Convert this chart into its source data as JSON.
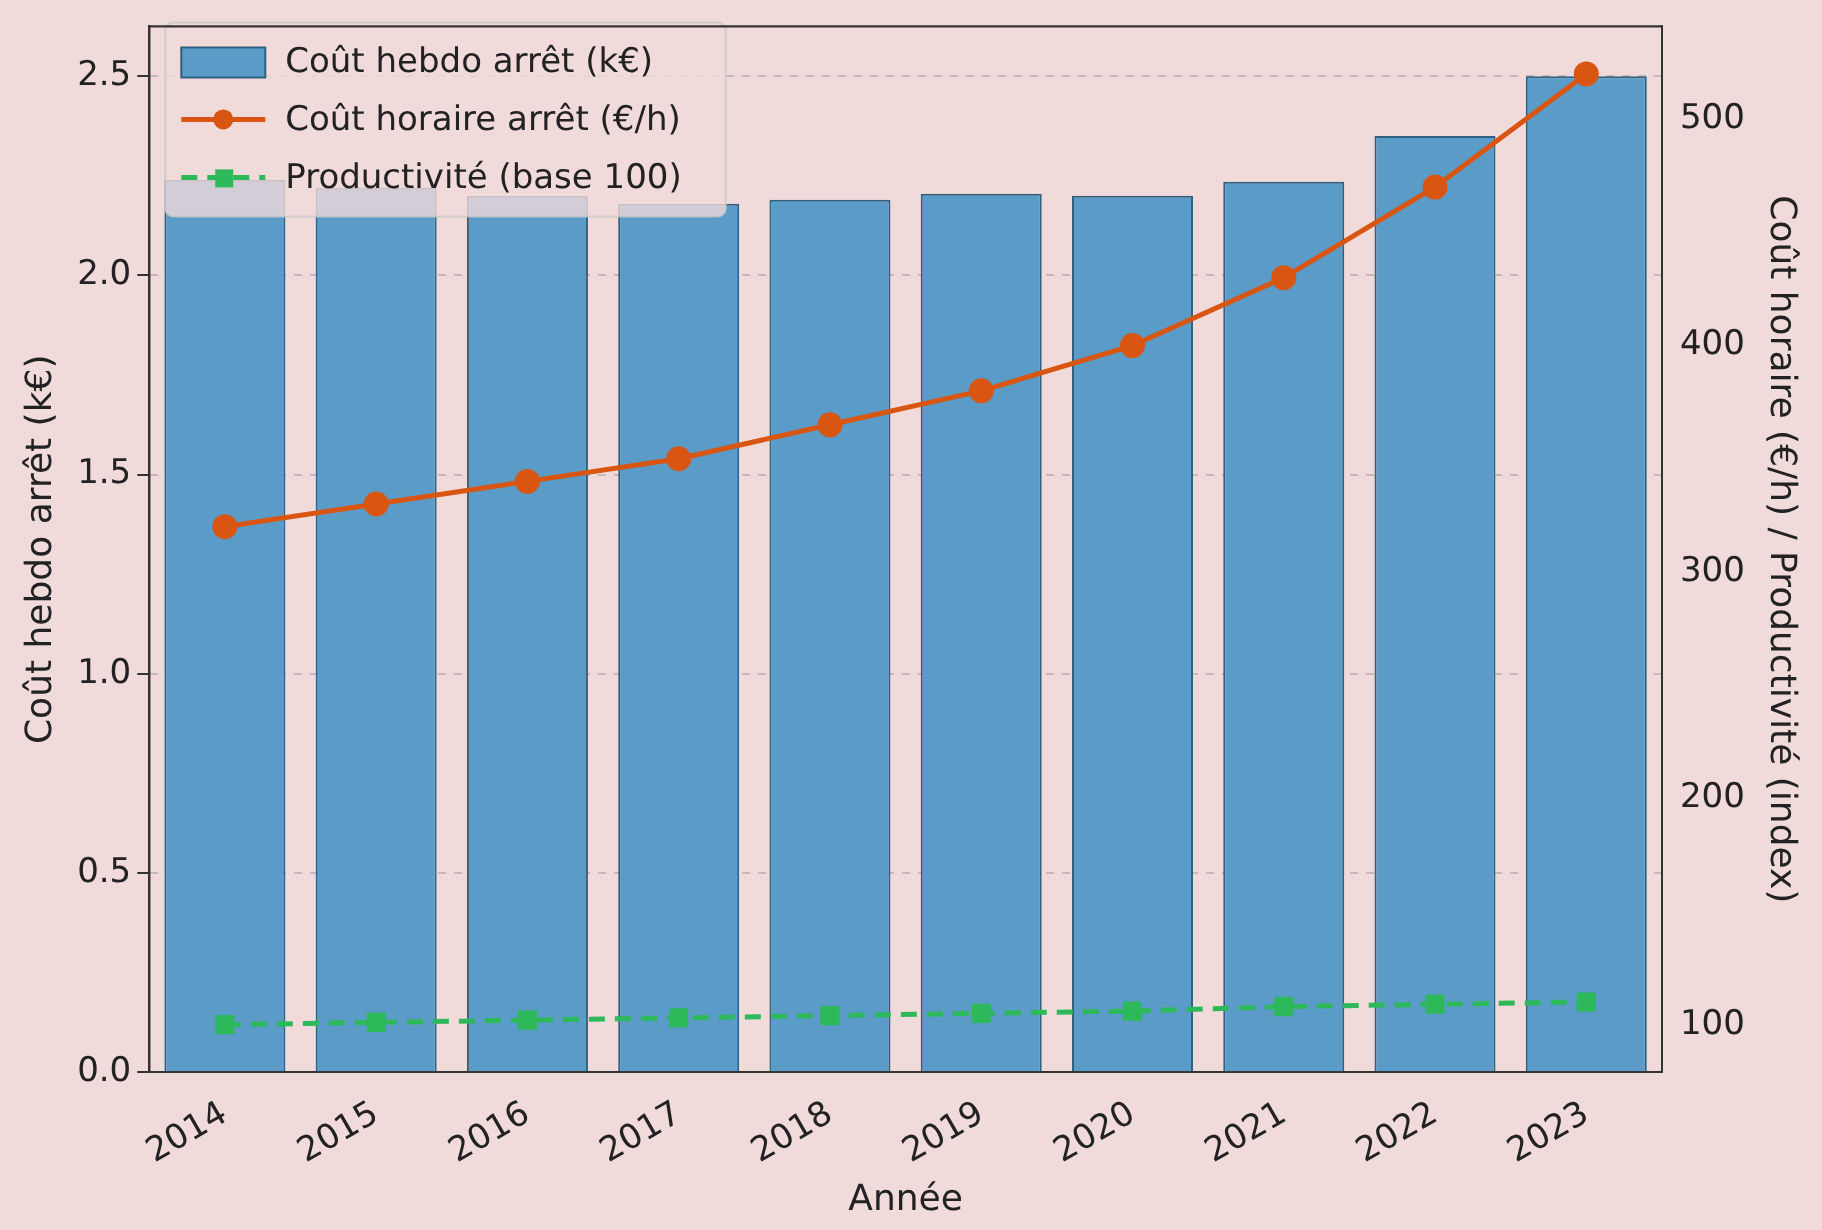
{
  "chart_data": {
    "type": "bar",
    "xlabel": "Année",
    "ylabel": "Coût hebdo arrêt (k€)",
    "y2label": "Coût horaire (€/h) / Productivité (index)",
    "categories": [
      "2014",
      "2015",
      "2016",
      "2017",
      "2018",
      "2019",
      "2020",
      "2021",
      "2022",
      "2023"
    ],
    "series": [
      {
        "name": "Coût hebdo arrêt (k€)",
        "color": "#5b9bc8",
        "values": [
          2.24,
          2.22,
          2.2,
          2.18,
          2.19,
          2.205,
          2.2,
          2.235,
          2.35,
          2.5
        ]
      },
      {
        "name": "Coût horaire arrêt (€/h)",
        "type": "line",
        "axis": "y2",
        "color": "#d95512",
        "marker": "circle",
        "line_style": "solid",
        "values": [
          320,
          330,
          340,
          350,
          365,
          380,
          400,
          430,
          470,
          520
        ]
      },
      {
        "name": "Productivité (base 100)",
        "type": "line",
        "axis": "y2",
        "color": "#2db85a",
        "marker": "square",
        "line_style": "dashed",
        "values": [
          100,
          101,
          102,
          103,
          104,
          105,
          106,
          108,
          109,
          110
        ]
      }
    ],
    "ylim": [
      0,
      2.625
    ],
    "yticks": [
      {
        "value": 0,
        "label": "0.0"
      },
      0.5,
      {
        "value": 1,
        "label": "1.0"
      },
      1.5,
      {
        "value": 2,
        "label": "2.0"
      },
      2.5
    ],
    "y2lim": [
      79,
      541
    ],
    "y2ticks": [
      100,
      200,
      300,
      400,
      500
    ],
    "grid": "y",
    "legend": "top left"
  }
}
